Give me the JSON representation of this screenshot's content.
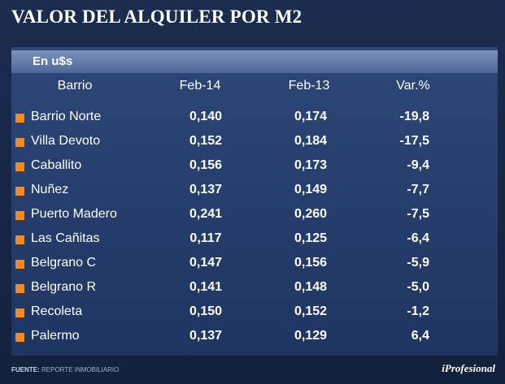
{
  "header": {
    "title": "VALOR DEL ALQUILER POR M2"
  },
  "table": {
    "caption": "En u$s",
    "columns": [
      "Barrio",
      "Feb-14",
      "Feb-13",
      "Var.%"
    ],
    "rows": [
      [
        "Barrio Norte",
        "0,140",
        "0,174",
        "-19,8"
      ],
      [
        "Villa Devoto",
        "0,152",
        "0,184",
        "-17,5"
      ],
      [
        "Caballito",
        "0,156",
        "0,173",
        "-9,4"
      ],
      [
        "Nuñez",
        "0,137",
        "0,149",
        "-7,7"
      ],
      [
        "Puerto Madero",
        "0,241",
        "0,260",
        "-7,5"
      ],
      [
        "Las Cañitas",
        "0,117",
        "0,125",
        "-6,4"
      ],
      [
        "Belgrano C",
        "0,147",
        "0,156",
        "-5,9"
      ],
      [
        "Belgrano R",
        "0,141",
        "0,148",
        "-5,0"
      ],
      [
        "Recoleta",
        "0,150",
        "0,152",
        "-1,2"
      ],
      [
        "Palermo",
        "0,137",
        "0,129",
        "6,4"
      ]
    ]
  },
  "footer": {
    "source_label": "FUENTE:",
    "source": "REPORTE INMOBILIARIO",
    "brand": "iProfesional"
  }
}
